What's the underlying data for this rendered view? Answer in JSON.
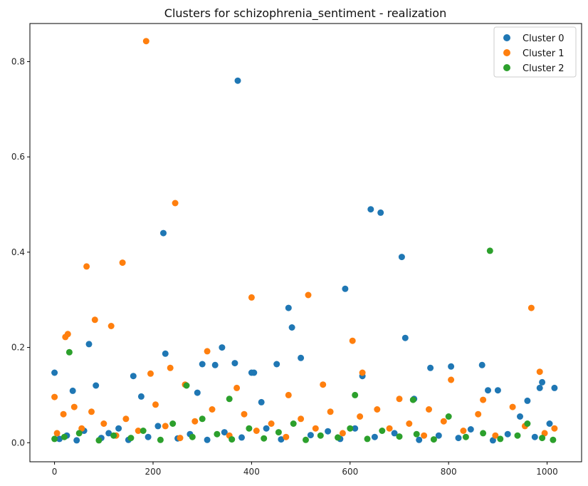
{
  "chart_data": {
    "type": "scatter",
    "title": "Clusters for schizophrenia_sentiment - realization",
    "xlabel": "",
    "ylabel": "",
    "xlim": [
      -50,
      1070
    ],
    "ylim": [
      -0.04,
      0.88
    ],
    "xticks": [
      0,
      200,
      400,
      600,
      800,
      1000
    ],
    "yticks": [
      0.0,
      0.2,
      0.4,
      0.6,
      0.8
    ],
    "grid": false,
    "legend_position": "top-right",
    "series": [
      {
        "name": "Cluster 0",
        "color": "#1f77b4",
        "points": [
          [
            0,
            0.147
          ],
          [
            37,
            0.109
          ],
          [
            70,
            0.207
          ],
          [
            84,
            0.12
          ],
          [
            160,
            0.14
          ],
          [
            176,
            0.097
          ],
          [
            221,
            0.44
          ],
          [
            225,
            0.187
          ],
          [
            290,
            0.105
          ],
          [
            300,
            0.165
          ],
          [
            326,
            0.163
          ],
          [
            340,
            0.2
          ],
          [
            366,
            0.167
          ],
          [
            372,
            0.76
          ],
          [
            400,
            0.147
          ],
          [
            405,
            0.147
          ],
          [
            420,
            0.085
          ],
          [
            451,
            0.165
          ],
          [
            475,
            0.283
          ],
          [
            482,
            0.242
          ],
          [
            500,
            0.178
          ],
          [
            590,
            0.323
          ],
          [
            625,
            0.14
          ],
          [
            642,
            0.49
          ],
          [
            662,
            0.483
          ],
          [
            705,
            0.39
          ],
          [
            712,
            0.22
          ],
          [
            730,
            0.092
          ],
          [
            763,
            0.157
          ],
          [
            805,
            0.16
          ],
          [
            868,
            0.163
          ],
          [
            880,
            0.11
          ],
          [
            900,
            0.11
          ],
          [
            960,
            0.088
          ],
          [
            985,
            0.115
          ],
          [
            990,
            0.127
          ],
          [
            1015,
            0.115
          ],
          [
            10,
            0.008
          ],
          [
            25,
            0.015
          ],
          [
            45,
            0.005
          ],
          [
            60,
            0.025
          ],
          [
            95,
            0.01
          ],
          [
            110,
            0.02
          ],
          [
            130,
            0.03
          ],
          [
            150,
            0.006
          ],
          [
            190,
            0.012
          ],
          [
            210,
            0.035
          ],
          [
            250,
            0.009
          ],
          [
            275,
            0.018
          ],
          [
            310,
            0.006
          ],
          [
            345,
            0.022
          ],
          [
            380,
            0.011
          ],
          [
            430,
            0.03
          ],
          [
            460,
            0.007
          ],
          [
            520,
            0.016
          ],
          [
            555,
            0.024
          ],
          [
            580,
            0.008
          ],
          [
            610,
            0.03
          ],
          [
            650,
            0.012
          ],
          [
            690,
            0.02
          ],
          [
            740,
            0.006
          ],
          [
            780,
            0.015
          ],
          [
            820,
            0.01
          ],
          [
            845,
            0.028
          ],
          [
            890,
            0.005
          ],
          [
            920,
            0.018
          ],
          [
            945,
            0.055
          ],
          [
            975,
            0.012
          ],
          [
            1005,
            0.04
          ]
        ]
      },
      {
        "name": "Cluster 1",
        "color": "#ff7f0e",
        "points": [
          [
            0,
            0.096
          ],
          [
            22,
            0.222
          ],
          [
            27,
            0.228
          ],
          [
            65,
            0.37
          ],
          [
            82,
            0.258
          ],
          [
            115,
            0.245
          ],
          [
            138,
            0.378
          ],
          [
            186,
            0.843
          ],
          [
            195,
            0.145
          ],
          [
            245,
            0.503
          ],
          [
            235,
            0.157
          ],
          [
            265,
            0.122
          ],
          [
            310,
            0.192
          ],
          [
            370,
            0.115
          ],
          [
            400,
            0.305
          ],
          [
            475,
            0.1
          ],
          [
            515,
            0.31
          ],
          [
            545,
            0.122
          ],
          [
            605,
            0.214
          ],
          [
            625,
            0.147
          ],
          [
            700,
            0.092
          ],
          [
            760,
            0.07
          ],
          [
            805,
            0.132
          ],
          [
            870,
            0.09
          ],
          [
            968,
            0.283
          ],
          [
            985,
            0.149
          ],
          [
            5,
            0.02
          ],
          [
            18,
            0.06
          ],
          [
            40,
            0.075
          ],
          [
            55,
            0.03
          ],
          [
            75,
            0.065
          ],
          [
            100,
            0.04
          ],
          [
            125,
            0.015
          ],
          [
            145,
            0.05
          ],
          [
            170,
            0.025
          ],
          [
            205,
            0.08
          ],
          [
            225,
            0.035
          ],
          [
            255,
            0.01
          ],
          [
            285,
            0.045
          ],
          [
            320,
            0.07
          ],
          [
            355,
            0.015
          ],
          [
            385,
            0.06
          ],
          [
            410,
            0.025
          ],
          [
            440,
            0.04
          ],
          [
            470,
            0.012
          ],
          [
            500,
            0.05
          ],
          [
            530,
            0.03
          ],
          [
            560,
            0.065
          ],
          [
            585,
            0.02
          ],
          [
            620,
            0.055
          ],
          [
            655,
            0.07
          ],
          [
            680,
            0.03
          ],
          [
            720,
            0.04
          ],
          [
            750,
            0.015
          ],
          [
            790,
            0.045
          ],
          [
            830,
            0.025
          ],
          [
            860,
            0.06
          ],
          [
            895,
            0.015
          ],
          [
            930,
            0.075
          ],
          [
            955,
            0.035
          ],
          [
            995,
            0.02
          ],
          [
            1015,
            0.03
          ]
        ]
      },
      {
        "name": "Cluster 2",
        "color": "#2ca02c",
        "points": [
          [
            30,
            0.19
          ],
          [
            268,
            0.12
          ],
          [
            355,
            0.092
          ],
          [
            610,
            0.1
          ],
          [
            728,
            0.09
          ],
          [
            884,
            0.403
          ],
          [
            0,
            0.008
          ],
          [
            20,
            0.012
          ],
          [
            50,
            0.02
          ],
          [
            90,
            0.005
          ],
          [
            120,
            0.015
          ],
          [
            155,
            0.01
          ],
          [
            180,
            0.025
          ],
          [
            215,
            0.006
          ],
          [
            240,
            0.04
          ],
          [
            280,
            0.012
          ],
          [
            300,
            0.05
          ],
          [
            330,
            0.018
          ],
          [
            360,
            0.007
          ],
          [
            395,
            0.03
          ],
          [
            425,
            0.009
          ],
          [
            455,
            0.022
          ],
          [
            485,
            0.04
          ],
          [
            510,
            0.006
          ],
          [
            540,
            0.015
          ],
          [
            575,
            0.011
          ],
          [
            600,
            0.03
          ],
          [
            635,
            0.008
          ],
          [
            665,
            0.025
          ],
          [
            700,
            0.013
          ],
          [
            735,
            0.018
          ],
          [
            770,
            0.007
          ],
          [
            800,
            0.055
          ],
          [
            835,
            0.012
          ],
          [
            870,
            0.02
          ],
          [
            905,
            0.008
          ],
          [
            940,
            0.015
          ],
          [
            960,
            0.04
          ],
          [
            990,
            0.01
          ],
          [
            1012,
            0.006
          ]
        ]
      }
    ]
  }
}
